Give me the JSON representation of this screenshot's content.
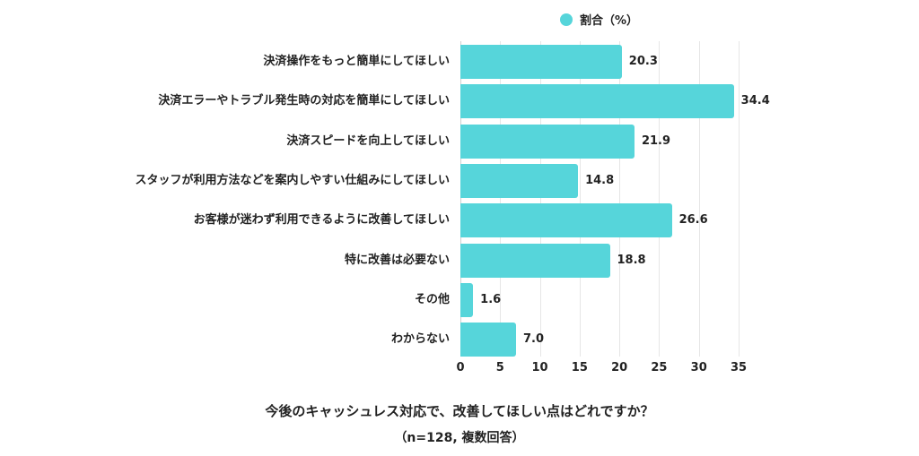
{
  "legend": {
    "label": "割合（%）",
    "color": "#56d5da"
  },
  "chart_data": {
    "type": "bar",
    "orientation": "horizontal",
    "title": "今後のキャッシュレス対応で、改善してほしい点はどれですか？",
    "subtitle": "（n=128, 複数回答）",
    "categories": [
      "決済操作をもっと簡単にしてほしい",
      "決済エラーやトラブル発生時の対応を簡単にしてほしい",
      "決済スピードを向上してほしい",
      "スタッフが利用方法などを案内しやすい仕組みにしてほしい",
      "お客様が迷わず利用できるように改善してほしい",
      "特に改善は必要ない",
      "その他",
      "わからない"
    ],
    "series": [
      {
        "name": "割合（%）",
        "values": [
          20.3,
          34.4,
          21.9,
          14.8,
          26.6,
          18.8,
          1.6,
          7.0
        ],
        "color": "#56d5da"
      }
    ],
    "value_labels": [
      "20.3",
      "34.4",
      "21.9",
      "14.8",
      "26.6",
      "18.8",
      "1.6",
      "7.0"
    ],
    "xlabel": "",
    "ylabel": "",
    "xlim": [
      0,
      35
    ],
    "xticks": [
      "0",
      "5",
      "10",
      "15",
      "20",
      "25",
      "30",
      "35"
    ],
    "grid": true,
    "legend_position": "top"
  }
}
